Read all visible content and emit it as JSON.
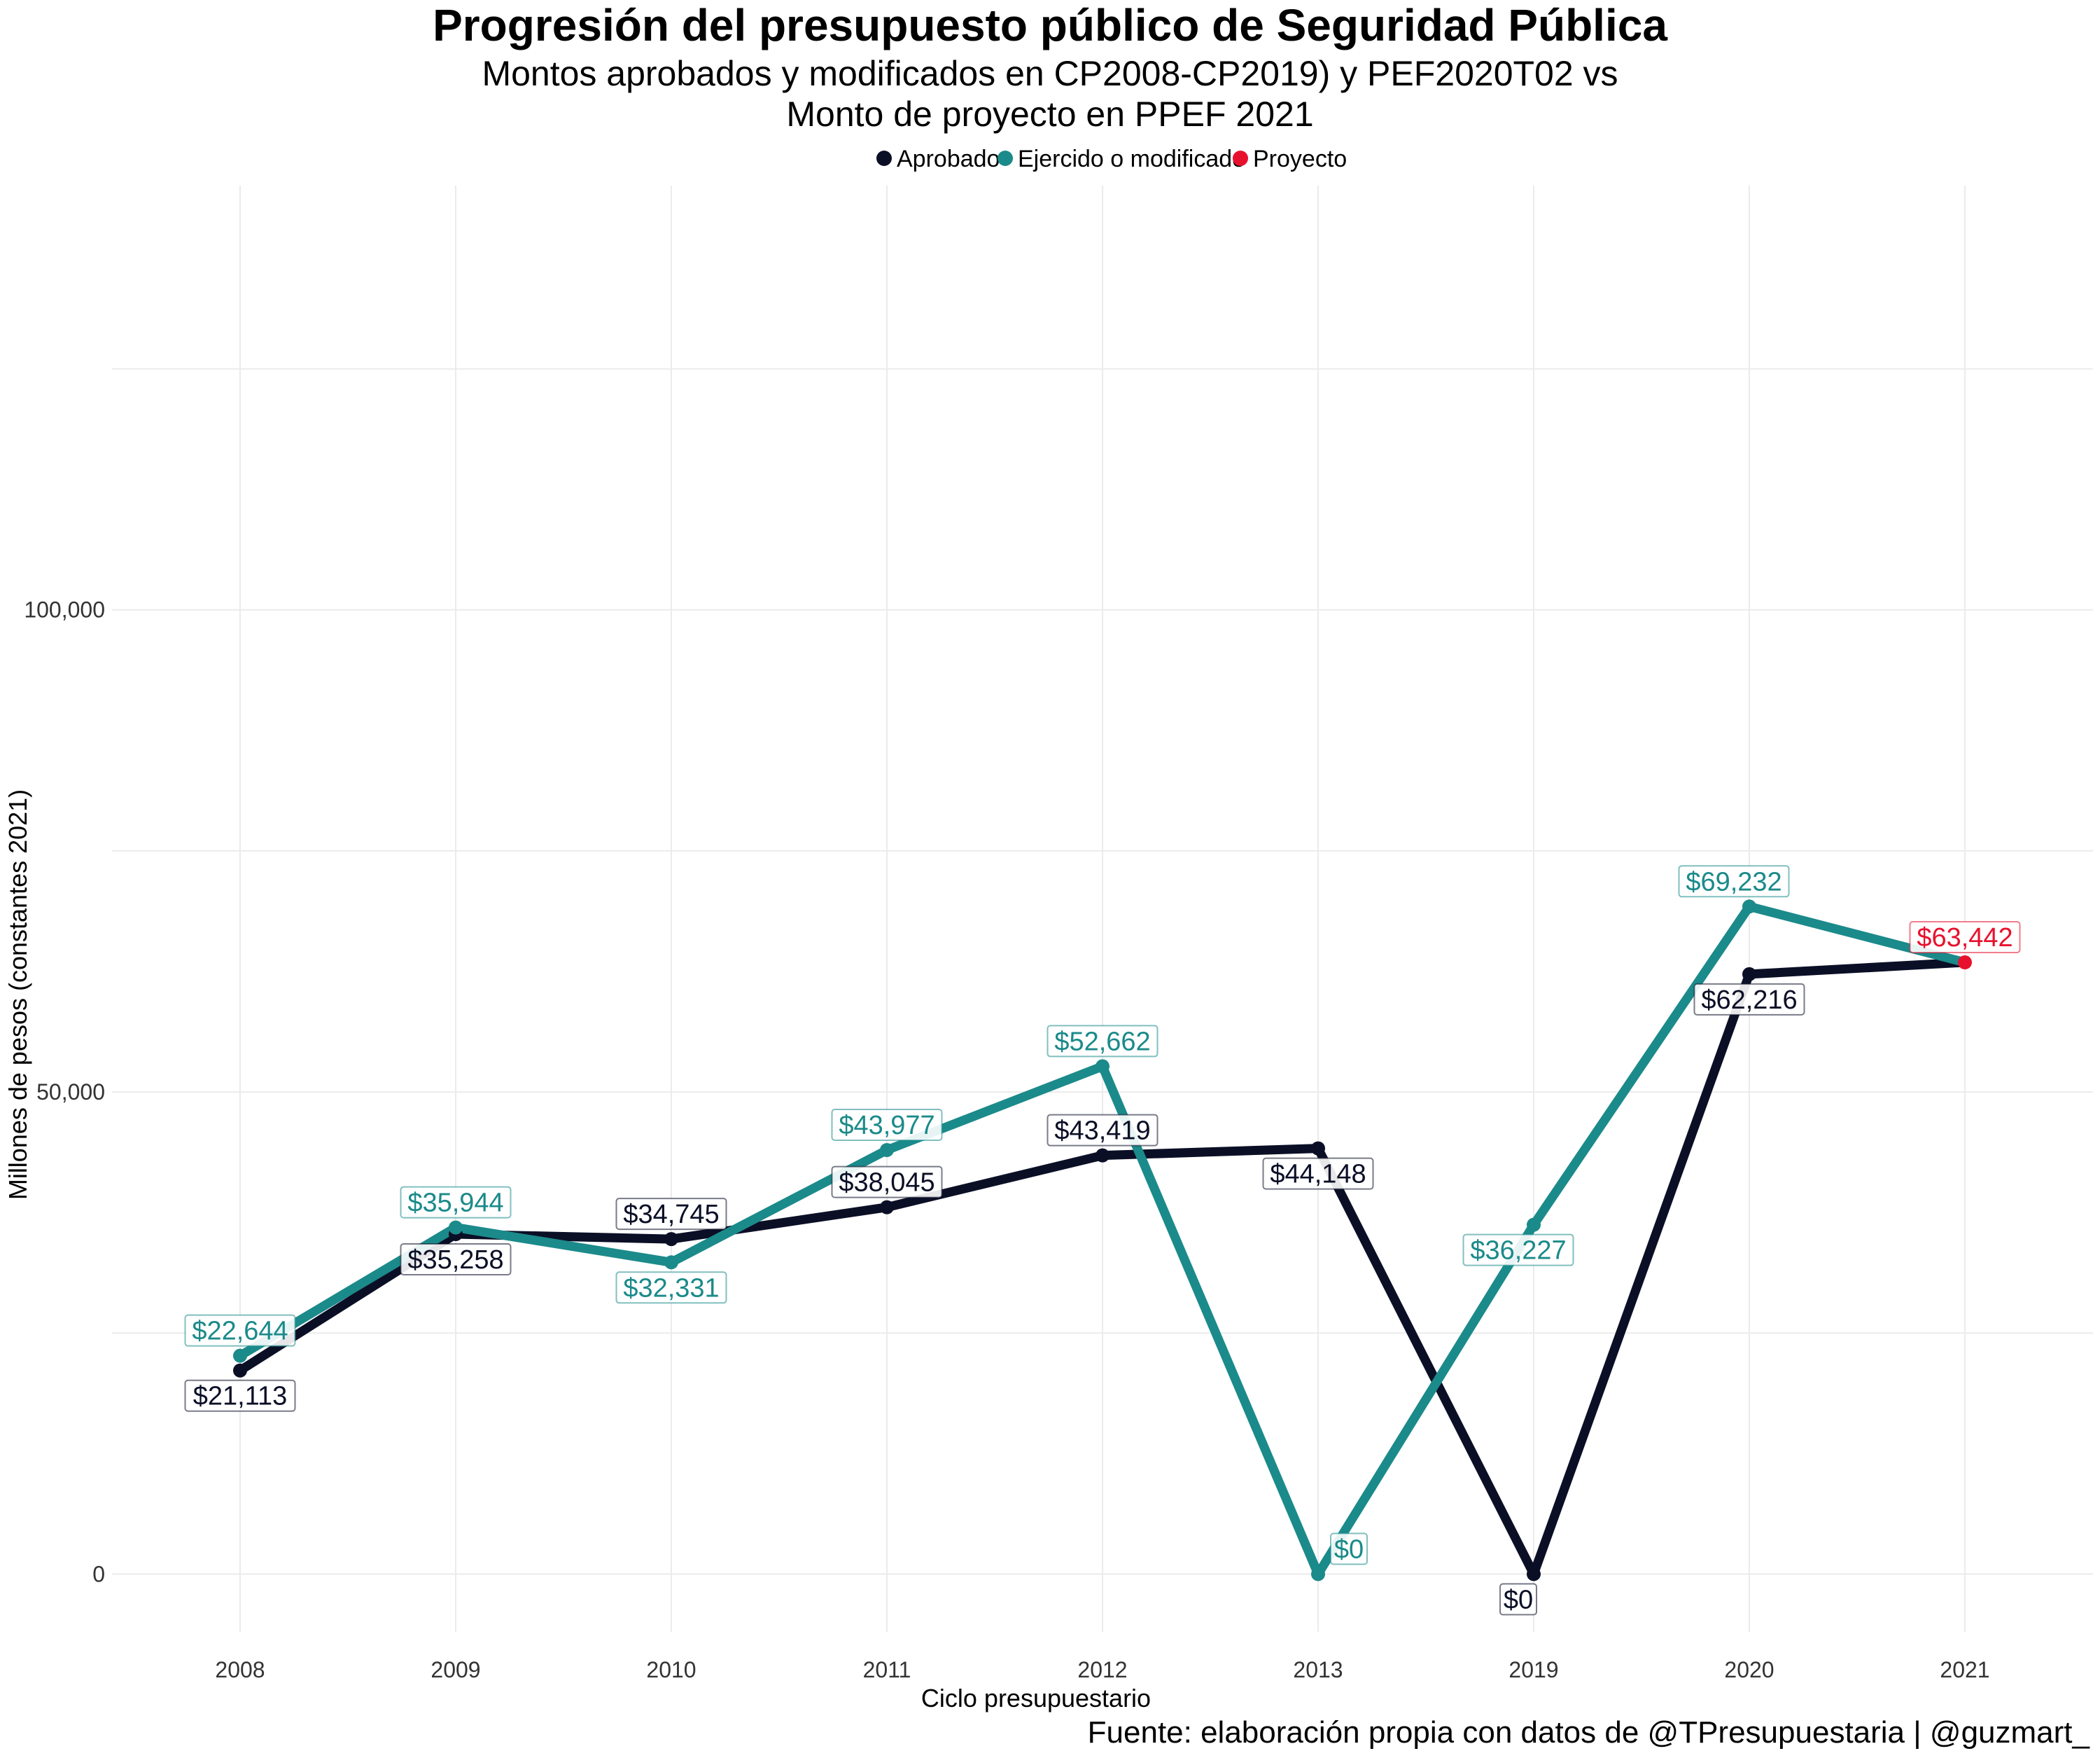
{
  "chart_data": {
    "type": "line",
    "title": "Progresión del presupuesto público de Seguridad Pública",
    "subtitle_lines": [
      "Montos aprobados y modificados en CP2008-CP2019) y PEF2020T02 vs",
      "Monto de proyecto en PPEF 2021"
    ],
    "xlabel": "Ciclo presupuestario",
    "ylabel": "Millones de pesos (constantes 2021)",
    "caption": "Fuente: elaboración propia con datos de @TPresupuestaria | @guzmart_",
    "categories": [
      "2008",
      "2009",
      "2010",
      "2011",
      "2012",
      "2013",
      "2019",
      "2020",
      "2021"
    ],
    "ylim": [
      -6000,
      144000
    ],
    "yticks": [
      0,
      50000,
      100000
    ],
    "ytick_labels": [
      "0",
      "50,000",
      "100,000"
    ],
    "grid": true,
    "legend_position": "top",
    "series": [
      {
        "name": "Aprobado",
        "color": "#0b0f26",
        "values": [
          21113,
          35258,
          34745,
          38045,
          43419,
          44148,
          0,
          62216,
          63442
        ],
        "labels": [
          "$21,113",
          "$35,258",
          "$34,745",
          "$38,045",
          "$43,419",
          "$44,148",
          "$0",
          "$62,216",
          null
        ]
      },
      {
        "name": "Ejercido o modificado",
        "color": "#1b8a8a",
        "values": [
          22644,
          35944,
          32331,
          43977,
          52662,
          0,
          36227,
          69232,
          63442
        ],
        "labels": [
          "$22,644",
          "$35,944",
          "$32,331",
          "$43,977",
          "$52,662",
          "$0",
          "$36,227",
          "$69,232",
          null
        ]
      },
      {
        "name": "Proyecto",
        "color": "#e8112d",
        "values": [
          null,
          null,
          null,
          null,
          null,
          null,
          null,
          null,
          63442
        ],
        "labels": [
          null,
          null,
          null,
          null,
          null,
          null,
          null,
          null,
          "$63,442"
        ]
      }
    ]
  }
}
